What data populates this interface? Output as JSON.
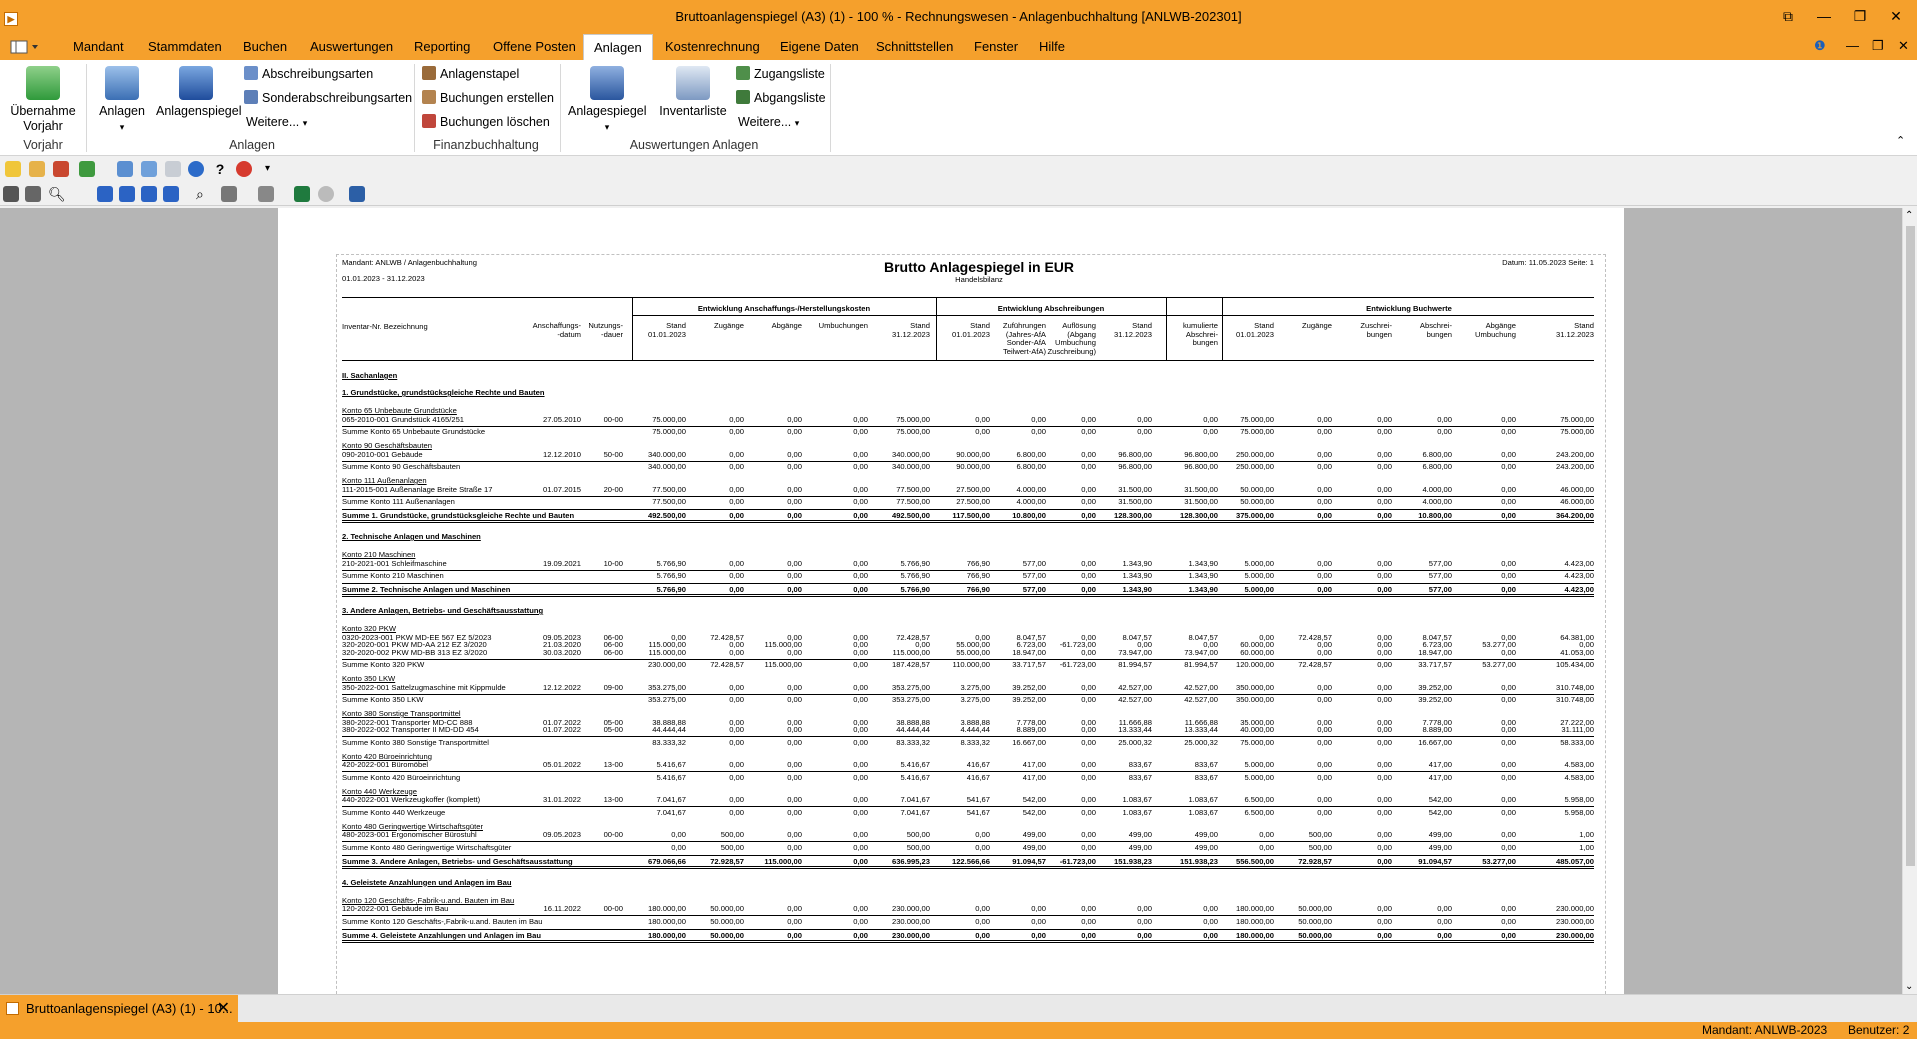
{
  "window": {
    "title": "Bruttoanlagenspiegel (A3) (1) - 100 % - Rechnungswesen - Anlagenbuchhaltung [ANLWB-202301]"
  },
  "menu": {
    "items": [
      "Mandant",
      "Stammdaten",
      "Buchen",
      "Auswertungen",
      "Reporting",
      "Offene Posten",
      "Anlagen",
      "Kostenrechnung",
      "Eigene Daten",
      "Schnittstellen",
      "Fenster",
      "Hilfe"
    ],
    "active": "Anlagen"
  },
  "ribbon": {
    "uebernahme": "Übernahme Vorjahr",
    "grp_vorjahr": "Vorjahr",
    "anlagen": "Anlagen",
    "anlagenspiegel": "Anlagenspiegel",
    "abschreibungsarten": "Abschreibungsarten",
    "sonderabschreibungsarten": "Sonderabschreibungsarten",
    "weitere": "Weitere...",
    "grp_anlagen": "Anlagen",
    "anlagenstapel": "Anlagenstapel",
    "buchungen_erstellen": "Buchungen erstellen",
    "buchungen_loeschen": "Buchungen löschen",
    "grp_fibu": "Finanzbuchhaltung",
    "anlagespiegel": "Anlagespiegel",
    "inventarliste": "Inventarliste",
    "zugangsliste": "Zugangsliste",
    "abgangsliste": "Abgangsliste",
    "weitere2": "Weitere...",
    "grp_auswertungen": "Auswertungen Anlagen"
  },
  "report": {
    "mandant_line": "Mandant:  ANLWB  /  Anlagenbuchhaltung",
    "period": "01.01.2023  - 31.12.2023",
    "title": "Brutto Anlagespiegel in EUR",
    "subtitle": "Handelsbilanz",
    "datum": "Datum:  11.05.2023  Seite:   1",
    "grp1": "Entwicklung Anschaffungs-/Herstellungskosten",
    "grp2": "Entwicklung Abschreibungen",
    "grp3": "Entwicklung Buchwerte",
    "col_inv": "Inventar-Nr.  Bezeichnung",
    "col_anschaff": "Anschaffungs-\n-datum",
    "col_nutz": "Nutzungs-\n-dauer",
    "cols_ahk": [
      "Stand\n01.01.2023",
      "Zugänge",
      "Abgänge",
      "Umbuchungen",
      "Stand\n31.12.2023"
    ],
    "cols_afa": [
      "Stand\n01.01.2023",
      "Zuführungen\n(Jahres-AfA\nSonder-AfA\nTeilwert-AfA)",
      "Auflösung\n(Abgang\nUmbuchung\nZuschreibung)",
      "Stand\n31.12.2023"
    ],
    "col_kum": "kumulierte\nAbschrei-\nbungen",
    "cols_bw": [
      "Stand\n01.01.2023",
      "Zugänge",
      "Zuschrei-\nbungen",
      "Abschrei-\nbungen",
      "Abgänge\nUmbuchung",
      "Stand\n31.12.2023"
    ],
    "lines": [
      {
        "type": "section",
        "label": "II. Sachanlagen"
      },
      {
        "type": "group",
        "label": "1. Grundstücke, grundstücksgleiche Rechte und Bauten"
      },
      {
        "type": "konto",
        "label": "Konto 65 Unbebaute Grundstücke"
      },
      {
        "type": "item",
        "label": "065-2010-001 Grundstück 4165/251",
        "date": "27.05.2010",
        "nd": "00-00",
        "v": [
          "75.000,00",
          "0,00",
          "0,00",
          "0,00",
          "75.000,00",
          "0,00",
          "0,00",
          "0,00",
          "0,00",
          "0,00",
          "75.000,00",
          "0,00",
          "0,00",
          "0,00",
          "0,00",
          "75.000,00"
        ]
      },
      {
        "type": "sum",
        "label": "Summe Konto 65 Unbebaute Grundstücke",
        "v": [
          "75.000,00",
          "0,00",
          "0,00",
          "0,00",
          "75.000,00",
          "0,00",
          "0,00",
          "0,00",
          "0,00",
          "0,00",
          "75.000,00",
          "0,00",
          "0,00",
          "0,00",
          "0,00",
          "75.000,00"
        ]
      },
      {
        "type": "konto",
        "label": "Konto 90 Geschäftsbauten"
      },
      {
        "type": "item",
        "label": "090-2010-001 Gebäude",
        "date": "12.12.2010",
        "nd": "50-00",
        "v": [
          "340.000,00",
          "0,00",
          "0,00",
          "0,00",
          "340.000,00",
          "90.000,00",
          "6.800,00",
          "0,00",
          "96.800,00",
          "96.800,00",
          "250.000,00",
          "0,00",
          "0,00",
          "6.800,00",
          "0,00",
          "243.200,00"
        ]
      },
      {
        "type": "sum",
        "label": "Summe Konto 90 Geschäftsbauten",
        "v": [
          "340.000,00",
          "0,00",
          "0,00",
          "0,00",
          "340.000,00",
          "90.000,00",
          "6.800,00",
          "0,00",
          "96.800,00",
          "96.800,00",
          "250.000,00",
          "0,00",
          "0,00",
          "6.800,00",
          "0,00",
          "243.200,00"
        ]
      },
      {
        "type": "konto",
        "label": "Konto 111 Außenanlagen"
      },
      {
        "type": "item",
        "label": "111-2015-001 Außenanlage Breite Straße 17",
        "date": "01.07.2015",
        "nd": "20-00",
        "v": [
          "77.500,00",
          "0,00",
          "0,00",
          "0,00",
          "77.500,00",
          "27.500,00",
          "4.000,00",
          "0,00",
          "31.500,00",
          "31.500,00",
          "50.000,00",
          "0,00",
          "0,00",
          "4.000,00",
          "0,00",
          "46.000,00"
        ]
      },
      {
        "type": "sum",
        "label": "Summe Konto 111 Außenanlagen",
        "v": [
          "77.500,00",
          "0,00",
          "0,00",
          "0,00",
          "77.500,00",
          "27.500,00",
          "4.000,00",
          "0,00",
          "31.500,00",
          "31.500,00",
          "50.000,00",
          "0,00",
          "0,00",
          "4.000,00",
          "0,00",
          "46.000,00"
        ]
      },
      {
        "type": "total",
        "label": "Summe 1. Grundstücke, grundstücksgleiche Rechte und Bauten",
        "v": [
          "492.500,00",
          "0,00",
          "0,00",
          "0,00",
          "492.500,00",
          "117.500,00",
          "10.800,00",
          "0,00",
          "128.300,00",
          "128.300,00",
          "375.000,00",
          "0,00",
          "0,00",
          "10.800,00",
          "0,00",
          "364.200,00"
        ]
      },
      {
        "type": "group",
        "label": "2. Technische Anlagen und Maschinen"
      },
      {
        "type": "konto",
        "label": "Konto 210 Maschinen"
      },
      {
        "type": "item",
        "label": "210-2021-001 Schleifmaschine",
        "date": "19.09.2021",
        "nd": "10-00",
        "v": [
          "5.766,90",
          "0,00",
          "0,00",
          "0,00",
          "5.766,90",
          "766,90",
          "577,00",
          "0,00",
          "1.343,90",
          "1.343,90",
          "5.000,00",
          "0,00",
          "0,00",
          "577,00",
          "0,00",
          "4.423,00"
        ]
      },
      {
        "type": "sum",
        "label": "Summe Konto 210 Maschinen",
        "v": [
          "5.766,90",
          "0,00",
          "0,00",
          "0,00",
          "5.766,90",
          "766,90",
          "577,00",
          "0,00",
          "1.343,90",
          "1.343,90",
          "5.000,00",
          "0,00",
          "0,00",
          "577,00",
          "0,00",
          "4.423,00"
        ]
      },
      {
        "type": "total",
        "label": "Summe 2. Technische Anlagen und Maschinen",
        "v": [
          "5.766,90",
          "0,00",
          "0,00",
          "0,00",
          "5.766,90",
          "766,90",
          "577,00",
          "0,00",
          "1.343,90",
          "1.343,90",
          "5.000,00",
          "0,00",
          "0,00",
          "577,00",
          "0,00",
          "4.423,00"
        ]
      },
      {
        "type": "group",
        "label": "3. Andere Anlagen, Betriebs- und Geschäftsausstattung"
      },
      {
        "type": "konto",
        "label": "Konto 320 PKW"
      },
      {
        "type": "item",
        "label": "0320-2023-001 PKW MD-EE 567 EZ 5/2023",
        "date": "09.05.2023",
        "nd": "06-00",
        "v": [
          "0,00",
          "72.428,57",
          "0,00",
          "0,00",
          "72.428,57",
          "0,00",
          "8.047,57",
          "0,00",
          "8.047,57",
          "8.047,57",
          "0,00",
          "72.428,57",
          "0,00",
          "8.047,57",
          "0,00",
          "64.381,00"
        ]
      },
      {
        "type": "item",
        "label": "320-2020-001 PKW MD-AA 212 EZ 3/2020",
        "date": "21.03.2020",
        "nd": "06-00",
        "v": [
          "115.000,00",
          "0,00",
          "115.000,00",
          "0,00",
          "0,00",
          "55.000,00",
          "6.723,00",
          "-61.723,00",
          "0,00",
          "0,00",
          "60.000,00",
          "0,00",
          "0,00",
          "6.723,00",
          "53.277,00",
          "0,00"
        ]
      },
      {
        "type": "item",
        "label": "320-2020-002 PKW MD-BB 313 EZ 3/2020",
        "date": "30.03.2020",
        "nd": "06-00",
        "v": [
          "115.000,00",
          "0,00",
          "0,00",
          "0,00",
          "115.000,00",
          "55.000,00",
          "18.947,00",
          "0,00",
          "73.947,00",
          "73.947,00",
          "60.000,00",
          "0,00",
          "0,00",
          "18.947,00",
          "0,00",
          "41.053,00"
        ]
      },
      {
        "type": "sum",
        "label": "Summe Konto 320 PKW",
        "v": [
          "230.000,00",
          "72.428,57",
          "115.000,00",
          "0,00",
          "187.428,57",
          "110.000,00",
          "33.717,57",
          "-61.723,00",
          "81.994,57",
          "81.994,57",
          "120.000,00",
          "72.428,57",
          "0,00",
          "33.717,57",
          "53.277,00",
          "105.434,00"
        ]
      },
      {
        "type": "konto",
        "label": "Konto 350 LKW"
      },
      {
        "type": "item",
        "label": "350-2022-001 Sattelzugmaschine mit Kippmulde",
        "date": "12.12.2022",
        "nd": "09-00",
        "v": [
          "353.275,00",
          "0,00",
          "0,00",
          "0,00",
          "353.275,00",
          "3.275,00",
          "39.252,00",
          "0,00",
          "42.527,00",
          "42.527,00",
          "350.000,00",
          "0,00",
          "0,00",
          "39.252,00",
          "0,00",
          "310.748,00"
        ]
      },
      {
        "type": "sum",
        "label": "Summe Konto 350 LKW",
        "v": [
          "353.275,00",
          "0,00",
          "0,00",
          "0,00",
          "353.275,00",
          "3.275,00",
          "39.252,00",
          "0,00",
          "42.527,00",
          "42.527,00",
          "350.000,00",
          "0,00",
          "0,00",
          "39.252,00",
          "0,00",
          "310.748,00"
        ]
      },
      {
        "type": "konto",
        "label": "Konto 380 Sonstige Transportmittel"
      },
      {
        "type": "item",
        "label": "380-2022-001 Transporter MD-CC 888",
        "date": "01.07.2022",
        "nd": "05-00",
        "v": [
          "38.888,88",
          "0,00",
          "0,00",
          "0,00",
          "38.888,88",
          "3.888,88",
          "7.778,00",
          "0,00",
          "11.666,88",
          "11.666,88",
          "35.000,00",
          "0,00",
          "0,00",
          "7.778,00",
          "0,00",
          "27.222,00"
        ]
      },
      {
        "type": "item",
        "label": "380-2022-002 Transporter II MD-DD 454",
        "date": "01.07.2022",
        "nd": "05-00",
        "v": [
          "44.444,44",
          "0,00",
          "0,00",
          "0,00",
          "44.444,44",
          "4.444,44",
          "8.889,00",
          "0,00",
          "13.333,44",
          "13.333,44",
          "40.000,00",
          "0,00",
          "0,00",
          "8.889,00",
          "0,00",
          "31.111,00"
        ]
      },
      {
        "type": "sum",
        "label": "Summe Konto 380 Sonstige Transportmittel",
        "v": [
          "83.333,32",
          "0,00",
          "0,00",
          "0,00",
          "83.333,32",
          "8.333,32",
          "16.667,00",
          "0,00",
          "25.000,32",
          "25.000,32",
          "75.000,00",
          "0,00",
          "0,00",
          "16.667,00",
          "0,00",
          "58.333,00"
        ]
      },
      {
        "type": "konto",
        "label": "Konto 420 Büroeinrichtung"
      },
      {
        "type": "item",
        "label": "420-2022-001 Büromöbel",
        "date": "05.01.2022",
        "nd": "13-00",
        "v": [
          "5.416,67",
          "0,00",
          "0,00",
          "0,00",
          "5.416,67",
          "416,67",
          "417,00",
          "0,00",
          "833,67",
          "833,67",
          "5.000,00",
          "0,00",
          "0,00",
          "417,00",
          "0,00",
          "4.583,00"
        ]
      },
      {
        "type": "sum",
        "label": "Summe Konto 420 Büroeinrichtung",
        "v": [
          "5.416,67",
          "0,00",
          "0,00",
          "0,00",
          "5.416,67",
          "416,67",
          "417,00",
          "0,00",
          "833,67",
          "833,67",
          "5.000,00",
          "0,00",
          "0,00",
          "417,00",
          "0,00",
          "4.583,00"
        ]
      },
      {
        "type": "konto",
        "label": "Konto 440 Werkzeuge"
      },
      {
        "type": "item",
        "label": "440-2022-001 Werkzeugkoffer (komplett)",
        "date": "31.01.2022",
        "nd": "13-00",
        "v": [
          "7.041,67",
          "0,00",
          "0,00",
          "0,00",
          "7.041,67",
          "541,67",
          "542,00",
          "0,00",
          "1.083,67",
          "1.083,67",
          "6.500,00",
          "0,00",
          "0,00",
          "542,00",
          "0,00",
          "5.958,00"
        ]
      },
      {
        "type": "sum",
        "label": "Summe Konto 440 Werkzeuge",
        "v": [
          "7.041,67",
          "0,00",
          "0,00",
          "0,00",
          "7.041,67",
          "541,67",
          "542,00",
          "0,00",
          "1.083,67",
          "1.083,67",
          "6.500,00",
          "0,00",
          "0,00",
          "542,00",
          "0,00",
          "5.958,00"
        ]
      },
      {
        "type": "konto",
        "label": "Konto 480 Geringwertige Wirtschaftsgüter"
      },
      {
        "type": "item",
        "label": "480-2023-001 Ergonomischer Bürostuhl",
        "date": "09.05.2023",
        "nd": "00-00",
        "v": [
          "0,00",
          "500,00",
          "0,00",
          "0,00",
          "500,00",
          "0,00",
          "499,00",
          "0,00",
          "499,00",
          "499,00",
          "0,00",
          "500,00",
          "0,00",
          "499,00",
          "0,00",
          "1,00"
        ]
      },
      {
        "type": "sum",
        "label": "Summe Konto 480 Geringwertige Wirtschaftsgüter",
        "v": [
          "0,00",
          "500,00",
          "0,00",
          "0,00",
          "500,00",
          "0,00",
          "499,00",
          "0,00",
          "499,00",
          "499,00",
          "0,00",
          "500,00",
          "0,00",
          "499,00",
          "0,00",
          "1,00"
        ]
      },
      {
        "type": "total",
        "label": "Summe 3. Andere Anlagen, Betriebs- und Geschäftsausstattung",
        "v": [
          "679.066,66",
          "72.928,57",
          "115.000,00",
          "0,00",
          "636.995,23",
          "122.566,66",
          "91.094,57",
          "-61.723,00",
          "151.938,23",
          "151.938,23",
          "556.500,00",
          "72.928,57",
          "0,00",
          "91.094,57",
          "53.277,00",
          "485.057,00"
        ]
      },
      {
        "type": "group",
        "label": "4. Geleistete Anzahlungen und Anlagen im Bau"
      },
      {
        "type": "konto",
        "label": "Konto 120 Geschäfts-,Fabrik-u.and. Bauten im Bau"
      },
      {
        "type": "item",
        "label": "120-2022-001 Gebäude im Bau",
        "date": "16.11.2022",
        "nd": "00-00",
        "v": [
          "180.000,00",
          "50.000,00",
          "0,00",
          "0,00",
          "230.000,00",
          "0,00",
          "0,00",
          "0,00",
          "0,00",
          "0,00",
          "180.000,00",
          "50.000,00",
          "0,00",
          "0,00",
          "0,00",
          "230.000,00"
        ]
      },
      {
        "type": "sum",
        "label": "Summe Konto 120 Geschäfts-,Fabrik-u.and. Bauten im Bau",
        "v": [
          "180.000,00",
          "50.000,00",
          "0,00",
          "0,00",
          "230.000,00",
          "0,00",
          "0,00",
          "0,00",
          "0,00",
          "0,00",
          "180.000,00",
          "50.000,00",
          "0,00",
          "0,00",
          "0,00",
          "230.000,00"
        ]
      },
      {
        "type": "total",
        "label": "Summe 4. Geleistete Anzahlungen und Anlagen im Bau",
        "v": [
          "180.000,00",
          "50.000,00",
          "0,00",
          "0,00",
          "230.000,00",
          "0,00",
          "0,00",
          "0,00",
          "0,00",
          "0,00",
          "180.000,00",
          "50.000,00",
          "0,00",
          "0,00",
          "0,00",
          "230.000,00"
        ]
      }
    ]
  },
  "taskbar": {
    "tab_label": "Bruttoanlagenspiegel (A3) (1) - 10..."
  },
  "status": {
    "mandant": "Mandant: ANLWB-2023",
    "benutzer": "Benutzer:  2"
  },
  "colors": {
    "accent": "#f5a02c"
  }
}
